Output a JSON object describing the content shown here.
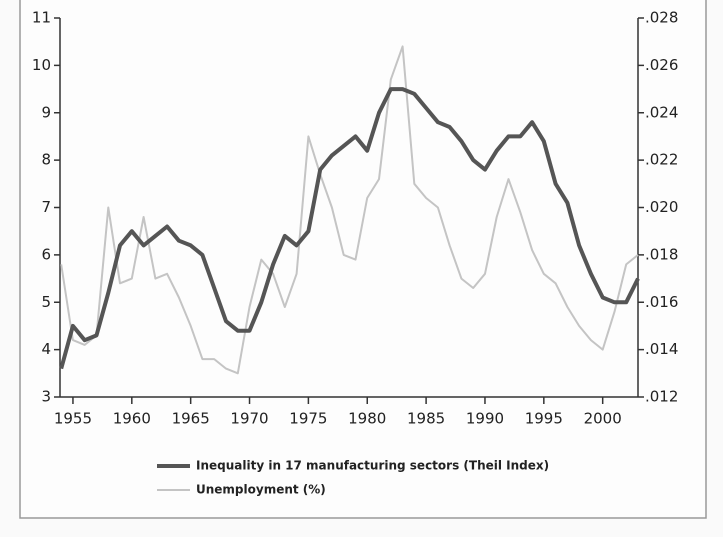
{
  "chart_data": {
    "type": "line",
    "x": [
      1954,
      1955,
      1956,
      1957,
      1958,
      1959,
      1960,
      1961,
      1962,
      1963,
      1964,
      1965,
      1966,
      1967,
      1968,
      1969,
      1970,
      1971,
      1972,
      1973,
      1974,
      1975,
      1976,
      1977,
      1978,
      1979,
      1980,
      1981,
      1982,
      1983,
      1984,
      1985,
      1986,
      1987,
      1988,
      1989,
      1990,
      1991,
      1992,
      1993,
      1994,
      1995,
      1996,
      1997,
      1998,
      1999,
      2000,
      2001,
      2002,
      2003
    ],
    "series": [
      {
        "name": "Inequality in 17 manufacturing sectors (Theil Index)",
        "color": "#555555",
        "axis": "y2",
        "values": [
          0.0132,
          0.015,
          0.0144,
          0.0146,
          0.0164,
          0.0184,
          0.019,
          0.0184,
          0.0188,
          0.0192,
          0.0186,
          0.0184,
          0.018,
          0.0166,
          0.0152,
          0.0148,
          0.0148,
          0.016,
          0.0176,
          0.0188,
          0.0184,
          0.019,
          0.0216,
          0.0222,
          0.0226,
          0.023,
          0.0224,
          0.024,
          0.025,
          0.025,
          0.0248,
          0.0242,
          0.0236,
          0.0234,
          0.0228,
          0.022,
          0.0216,
          0.0224,
          0.023,
          0.023,
          0.0236,
          0.0228,
          0.021,
          0.0202,
          0.0184,
          0.0172,
          0.0162,
          0.016,
          0.016,
          0.017
        ]
      },
      {
        "name": "Unemployment (%)",
        "color": "#c4c4c4",
        "values": [
          5.8,
          4.2,
          4.1,
          4.3,
          7.0,
          5.4,
          5.5,
          6.8,
          5.5,
          5.6,
          5.1,
          4.5,
          3.8,
          3.8,
          3.6,
          3.5,
          4.9,
          5.9,
          5.6,
          4.9,
          5.6,
          8.5,
          7.7,
          7.0,
          6.0,
          5.9,
          7.2,
          7.6,
          9.7,
          10.4,
          7.5,
          7.2,
          7.0,
          6.2,
          5.5,
          5.3,
          5.6,
          6.8,
          7.6,
          6.9,
          6.1,
          5.6,
          5.4,
          4.9,
          4.5,
          4.2,
          4.0,
          4.8,
          5.8,
          6.0
        ]
      }
    ],
    "xlim": [
      1953.9,
      2003
    ],
    "xticks": [
      1955,
      1960,
      1965,
      1970,
      1975,
      1980,
      1985,
      1990,
      1995,
      2000
    ],
    "ylim": [
      3,
      11
    ],
    "yticks": [
      3,
      4,
      5,
      6,
      7,
      8,
      9,
      10,
      11
    ],
    "y2lim": [
      0.012,
      0.028
    ],
    "y2ticks": [
      {
        "value": 0.012,
        "label": ".012"
      },
      {
        "value": 0.014,
        "label": ".014"
      },
      {
        "value": 0.016,
        "label": ".016"
      },
      {
        "value": 0.018,
        "label": ".018"
      },
      {
        "value": 0.02,
        "label": ".020"
      },
      {
        "value": 0.022,
        "label": ".022"
      },
      {
        "value": 0.024,
        "label": ".024"
      },
      {
        "value": 0.026,
        "label": ".026"
      },
      {
        "value": 0.028,
        "label": ".028"
      }
    ]
  }
}
